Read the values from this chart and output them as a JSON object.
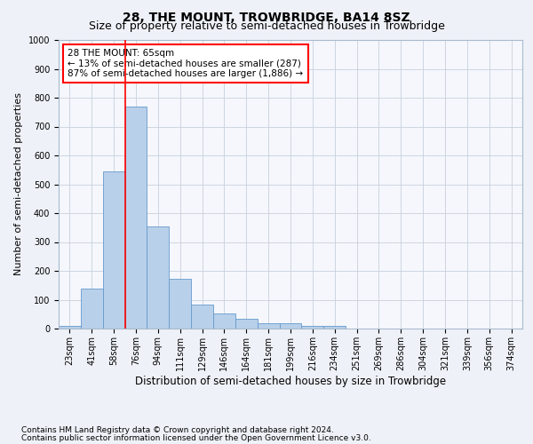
{
  "title1": "28, THE MOUNT, TROWBRIDGE, BA14 8SZ",
  "title2": "Size of property relative to semi-detached houses in Trowbridge",
  "xlabel": "Distribution of semi-detached houses by size in Trowbridge",
  "ylabel": "Number of semi-detached properties",
  "categories": [
    "23sqm",
    "41sqm",
    "58sqm",
    "76sqm",
    "94sqm",
    "111sqm",
    "129sqm",
    "146sqm",
    "164sqm",
    "181sqm",
    "199sqm",
    "216sqm",
    "234sqm",
    "251sqm",
    "269sqm",
    "286sqm",
    "304sqm",
    "321sqm",
    "339sqm",
    "356sqm",
    "374sqm"
  ],
  "values": [
    10,
    140,
    545,
    770,
    355,
    172,
    82,
    52,
    35,
    18,
    18,
    10,
    10,
    0,
    0,
    0,
    0,
    0,
    0,
    0,
    0
  ],
  "bar_color": "#b8d0ea",
  "bar_edge_color": "#6699cc",
  "vline_color": "red",
  "vline_position": 2.5,
  "annotation_text": "28 THE MOUNT: 65sqm\n← 13% of semi-detached houses are smaller (287)\n87% of semi-detached houses are larger (1,886) →",
  "annotation_box_color": "white",
  "annotation_box_edge_color": "red",
  "ylim": [
    0,
    1000
  ],
  "yticks": [
    0,
    100,
    200,
    300,
    400,
    500,
    600,
    700,
    800,
    900,
    1000
  ],
  "footnote1": "Contains HM Land Registry data © Crown copyright and database right 2024.",
  "footnote2": "Contains public sector information licensed under the Open Government Licence v3.0.",
  "bg_color": "#eef2f8",
  "plot_bg_color": "#f5f7fc",
  "grid_color": "#c8d0dc",
  "title1_fontsize": 10,
  "title2_fontsize": 9,
  "xlabel_fontsize": 8.5,
  "ylabel_fontsize": 8,
  "tick_fontsize": 7,
  "footnote_fontsize": 6.5,
  "ann_fontsize": 7.5
}
